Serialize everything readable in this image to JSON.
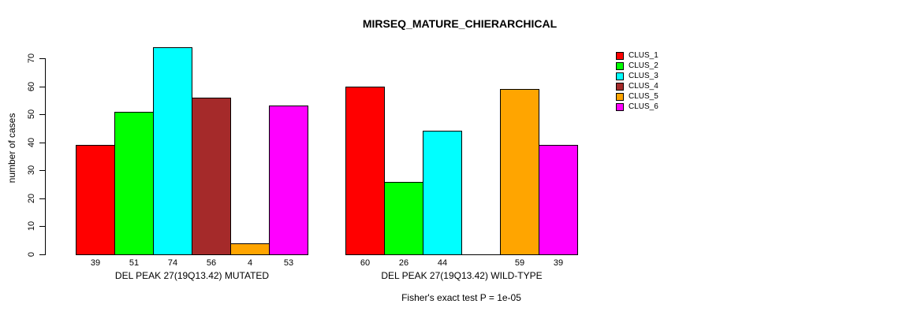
{
  "chart_data": {
    "type": "bar",
    "title": "MIRSEQ_MATURE_CHIERARCHICAL",
    "ylabel": "number of cases",
    "ylim": [
      0,
      74
    ],
    "yticks": [
      0,
      10,
      20,
      30,
      40,
      50,
      60,
      70
    ],
    "grid": false,
    "legend_position": "right",
    "background_color": "#ffffff",
    "bar_border_color": "#000000",
    "groups": [
      {
        "label": "DEL PEAK 27(19Q13.42) MUTATED",
        "values": [
          39,
          51,
          74,
          56,
          4,
          53
        ],
        "value_labels": [
          "39",
          "51",
          "74",
          "56",
          "4",
          "53"
        ]
      },
      {
        "label": "DEL PEAK 27(19Q13.42) WILD-TYPE",
        "values": [
          60,
          26,
          44,
          0,
          59,
          39
        ],
        "value_labels": [
          "60",
          "26",
          "44",
          "",
          "59",
          "39"
        ]
      }
    ],
    "series": [
      {
        "name": "CLUS_1",
        "color": "#FF0000",
        "values": [
          39,
          60
        ]
      },
      {
        "name": "CLUS_2",
        "color": "#00FF00",
        "values": [
          51,
          26
        ]
      },
      {
        "name": "CLUS_3",
        "color": "#00FFFF",
        "values": [
          74,
          44
        ]
      },
      {
        "name": "CLUS_4",
        "color": "#A52A2A",
        "values": [
          56,
          0
        ]
      },
      {
        "name": "CLUS_5",
        "color": "#FFA500",
        "values": [
          4,
          59
        ]
      },
      {
        "name": "CLUS_6",
        "color": "#FF00FF",
        "values": [
          53,
          39
        ]
      }
    ],
    "footnote": "Fisher's exact test P = 1e-05"
  }
}
